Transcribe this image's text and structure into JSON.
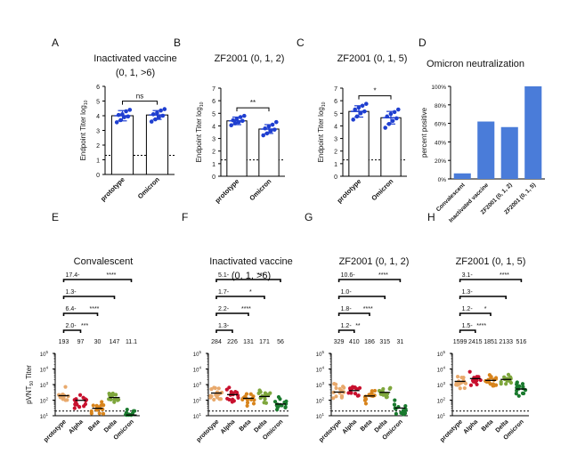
{
  "chart_data": [
    {
      "panel": "A",
      "type": "bar",
      "title_lines": [
        "Inactivated vaccine",
        "(0, 1, >6)"
      ],
      "ylabel": "Endpoint Titer  log",
      "ylabel_sub": "10",
      "ylim": [
        0,
        6
      ],
      "yticks": [
        "0",
        "1",
        "2",
        "3",
        "4",
        "5",
        "6"
      ],
      "categories": [
        "prototype",
        "Omicron"
      ],
      "values": [
        4.0,
        4.05
      ],
      "errors": [
        0.35,
        0.3
      ],
      "points": [
        [
          3.55,
          3.7,
          3.9,
          3.95,
          4.05,
          4.1,
          4.3,
          4.4
        ],
        [
          3.6,
          3.75,
          3.9,
          4.0,
          4.1,
          4.2,
          4.35,
          4.45
        ]
      ],
      "limit_line": 1.3,
      "significance": "ns",
      "bar_color": "#ffffff",
      "point_color": "#1f3fd0"
    },
    {
      "panel": "B",
      "type": "bar",
      "title_lines": [
        "ZF2001 (0, 1, 2)"
      ],
      "ylabel": "Endpoint Titer  log",
      "ylabel_sub": "10",
      "ylim": [
        0,
        7
      ],
      "yticks": [
        "0",
        "1",
        "2",
        "3",
        "4",
        "5",
        "6",
        "7"
      ],
      "categories": [
        "prototype",
        "Omicron"
      ],
      "values": [
        4.4,
        3.75
      ],
      "errors": [
        0.3,
        0.35
      ],
      "points": [
        [
          4.05,
          4.2,
          4.3,
          4.4,
          4.45,
          4.55,
          4.7,
          4.8
        ],
        [
          3.25,
          3.4,
          3.6,
          3.7,
          3.8,
          3.95,
          4.1,
          4.3
        ]
      ],
      "limit_line": 1.3,
      "significance": "**",
      "bar_color": "#ffffff",
      "point_color": "#1f3fd0"
    },
    {
      "panel": "C",
      "type": "bar",
      "title_lines": [
        "ZF2001 (0, 1, 5)"
      ],
      "ylabel": "Endpoint Titer  log",
      "ylabel_sub": "10",
      "ylim": [
        0,
        7
      ],
      "yticks": [
        "0",
        "1",
        "2",
        "3",
        "4",
        "5",
        "6",
        "7"
      ],
      "categories": [
        "prototype",
        "Omicron"
      ],
      "values": [
        5.15,
        4.65
      ],
      "errors": [
        0.45,
        0.5
      ],
      "points": [
        [
          4.5,
          4.75,
          5.0,
          5.15,
          5.3,
          5.45,
          5.6,
          5.75
        ],
        [
          3.85,
          4.15,
          4.4,
          4.6,
          4.75,
          4.95,
          5.1,
          5.3
        ]
      ],
      "limit_line": 1.3,
      "significance": "*",
      "bar_color": "#ffffff",
      "point_color": "#1f3fd0"
    },
    {
      "panel": "D",
      "type": "bar",
      "title_lines": [
        "Omicron neutralization"
      ],
      "ylabel": "percent positive",
      "ylim": [
        0,
        100
      ],
      "yticks": [
        "0%",
        "20%",
        "40%",
        "60%",
        "80%",
        "100%"
      ],
      "categories": [
        "Convalescent",
        "Inactivated vaccine",
        "ZF2001 (0, 1, 2)",
        "ZF2001 (0, 1, 5)"
      ],
      "values": [
        6,
        62,
        56,
        100
      ],
      "bar_color": "#4a7cd9"
    },
    {
      "panel": "E",
      "type": "scatter",
      "title_lines": [
        "Convalescent"
      ],
      "ylabel": "pVNT",
      "ylabel_sub": "50",
      "ylabel_suffix": " Titer",
      "log_range": [
        1,
        5
      ],
      "categories": [
        "prototype",
        "Alpha",
        "Beta",
        "Delta",
        "Omicron"
      ],
      "gmt": [
        "193",
        "97",
        "30",
        "147",
        "11.1"
      ],
      "gmt_values": [
        193,
        97,
        30,
        147,
        11.1
      ],
      "colors": [
        "#e8a96c",
        "#c8102e",
        "#d8841c",
        "#7ea63c",
        "#1a7a2e"
      ],
      "fold": [
        {
          "to": "Alpha",
          "label": "2.0",
          "stars": "***"
        },
        {
          "to": "Beta",
          "label": "6.4",
          "stars": "****"
        },
        {
          "to": "Delta",
          "label": "1.3",
          "stars": ""
        },
        {
          "to": "Omicron",
          "label": "17.4",
          "stars": "****"
        }
      ],
      "limit_line": 20
    },
    {
      "panel": "F",
      "type": "scatter",
      "title_lines": [
        "Inactivated vaccine",
        "(0, 1, >6)"
      ],
      "ylabel": "",
      "log_range": [
        1,
        5
      ],
      "categories": [
        "prototype",
        "Alpha",
        "Beta",
        "Delta",
        "Omicron"
      ],
      "gmt": [
        "284",
        "226",
        "131",
        "171",
        "56"
      ],
      "gmt_values": [
        284,
        226,
        131,
        171,
        56
      ],
      "colors": [
        "#e8a96c",
        "#c8102e",
        "#d8841c",
        "#7ea63c",
        "#1a7a2e"
      ],
      "fold": [
        {
          "to": "Alpha",
          "label": "1.3",
          "stars": ""
        },
        {
          "to": "Beta",
          "label": "2.2",
          "stars": "****"
        },
        {
          "to": "Delta",
          "label": "1.7",
          "stars": "*"
        },
        {
          "to": "Omicron",
          "label": "5.1",
          "stars": "***"
        }
      ],
      "limit_line": 20
    },
    {
      "panel": "G",
      "type": "scatter",
      "title_lines": [
        "ZF2001 (0, 1, 2)"
      ],
      "ylabel": "",
      "log_range": [
        1,
        5
      ],
      "categories": [
        "prototype",
        "Alpha",
        "Beta",
        "Delta",
        "Omicron"
      ],
      "gmt": [
        "329",
        "410",
        "186",
        "315",
        "31"
      ],
      "gmt_values": [
        329,
        410,
        186,
        315,
        31
      ],
      "colors": [
        "#e8a96c",
        "#c8102e",
        "#d8841c",
        "#7ea63c",
        "#1a7a2e"
      ],
      "fold": [
        {
          "to": "Alpha",
          "label": "1.2",
          "stars": "**"
        },
        {
          "to": "Beta",
          "label": "1.8",
          "stars": "****"
        },
        {
          "to": "Delta",
          "label": "1.0",
          "stars": ""
        },
        {
          "to": "Omicron",
          "label": "10.6",
          "stars": "****"
        }
      ],
      "limit_line": 20
    },
    {
      "panel": "H",
      "type": "scatter",
      "title_lines": [
        "ZF2001 (0, 1, 5)"
      ],
      "ylabel": "",
      "log_range": [
        1,
        5
      ],
      "categories": [
        "prototype",
        "Alpha",
        "Beta",
        "Delta",
        "Omicron"
      ],
      "gmt": [
        "1599",
        "2415",
        "1851",
        "2133",
        "516"
      ],
      "gmt_values": [
        1599,
        2415,
        1851,
        2133,
        516
      ],
      "colors": [
        "#e8a96c",
        "#c8102e",
        "#d8841c",
        "#7ea63c",
        "#1a7a2e"
      ],
      "fold": [
        {
          "to": "Alpha",
          "label": "1.5",
          "stars": "****"
        },
        {
          "to": "Beta",
          "label": "1.2",
          "stars": "*"
        },
        {
          "to": "Delta",
          "label": "1.3",
          "stars": ""
        },
        {
          "to": "Omicron",
          "label": "3.1",
          "stars": "****"
        }
      ],
      "limit_line": 20
    }
  ]
}
